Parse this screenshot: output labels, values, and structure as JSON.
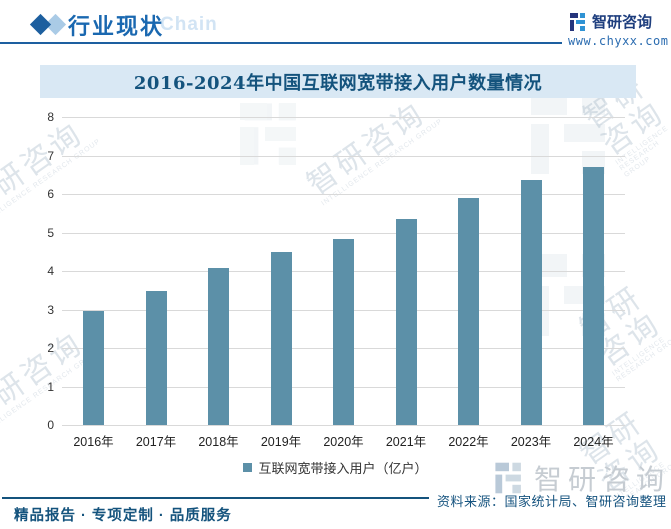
{
  "header": {
    "section_title": "行业现状",
    "brand_name": "智研咨询",
    "brand_url": "www.chyxx.com"
  },
  "watermark": {
    "brand_text": "智研咨询",
    "group_text": "INTELLIGENCE RESEARCH GROUP",
    "chain_text": "Chain"
  },
  "chart_data": {
    "type": "bar",
    "title": "2016-2024年中国互联网宽带接入用户数量情况",
    "categories": [
      "2016年",
      "2017年",
      "2018年",
      "2019年",
      "2020年",
      "2021年",
      "2022年",
      "2023年",
      "2024年"
    ],
    "series": [
      {
        "name": "互联网宽带接入用户（亿户）",
        "values": [
          2.97,
          3.49,
          4.07,
          4.49,
          4.84,
          5.36,
          5.9,
          6.36,
          6.71
        ]
      }
    ],
    "xlabel": "",
    "ylabel": "",
    "ylim": [
      0,
      8
    ],
    "ytick_interval": 1,
    "grid": true,
    "legend_position": "bottom",
    "bar_color": "#5c90a8"
  },
  "footer": {
    "tagline": "精品报告 · 专项定制 · 品质服务",
    "source_label": "资料来源：国家统计局、智研咨询整理"
  },
  "colors": {
    "accent_blue": "#1a68b0",
    "title_text": "#14537d",
    "banner_bg": "#d9e8f4",
    "bar": "#5c90a8",
    "grid": "#d9d9d9",
    "header_rule": "#1d5fa0"
  }
}
